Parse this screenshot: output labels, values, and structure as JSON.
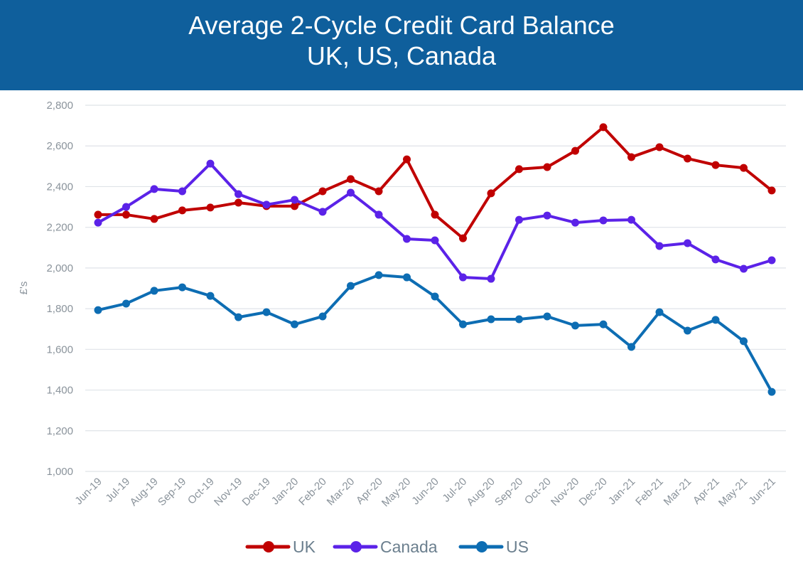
{
  "chart_data": {
    "type": "line",
    "title": "Average 2-Cycle Credit Card Balance",
    "subtitle": "UK, US, Canada",
    "ylabel": "£'s",
    "xlabel": "",
    "ylim": [
      1000,
      2800
    ],
    "yticks": [
      "1,000",
      "1,200",
      "1,400",
      "1,600",
      "1,800",
      "2,000",
      "2,200",
      "2,400",
      "2,600",
      "2,800"
    ],
    "grid": true,
    "legend": "bottom",
    "categories": [
      "Jun-19",
      "Jul-19",
      "Aug-19",
      "Sep-19",
      "Oct-19",
      "Nov-19",
      "Dec-19",
      "Jan-20",
      "Feb-20",
      "Mar-20",
      "Apr-20",
      "May-20",
      "Jun-20",
      "Jul-20",
      "Aug-20",
      "Sep-20",
      "Oct-20",
      "Nov-20",
      "Dec-20",
      "Jan-21",
      "Feb-21",
      "Mar-21",
      "Apr-21",
      "May-21",
      "Jun-21"
    ],
    "series": [
      {
        "name": "UK",
        "color": "#c00000",
        "values": [
          2262,
          2262,
          2241,
          2283,
          2297,
          2321,
          2304,
          2304,
          2377,
          2437,
          2377,
          2534,
          2262,
          2146,
          2367,
          2486,
          2496,
          2576,
          2692,
          2545,
          2594,
          2538,
          2506,
          2492,
          2381
        ]
      },
      {
        "name": "Canada",
        "color": "#5b22e8",
        "values": [
          2223,
          2300,
          2388,
          2377,
          2513,
          2363,
          2311,
          2335,
          2276,
          2370,
          2262,
          2143,
          2136,
          1954,
          1947,
          2237,
          2258,
          2223,
          2234,
          2237,
          2108,
          2122,
          2042,
          1996,
          2038
        ]
      },
      {
        "name": "US",
        "color": "#0d6db3",
        "values": [
          1793,
          1825,
          1888,
          1905,
          1863,
          1758,
          1783,
          1723,
          1762,
          1912,
          1965,
          1954,
          1860,
          1723,
          1748,
          1748,
          1762,
          1717,
          1723,
          1612,
          1783,
          1692,
          1745,
          1640,
          1391
        ]
      }
    ]
  }
}
